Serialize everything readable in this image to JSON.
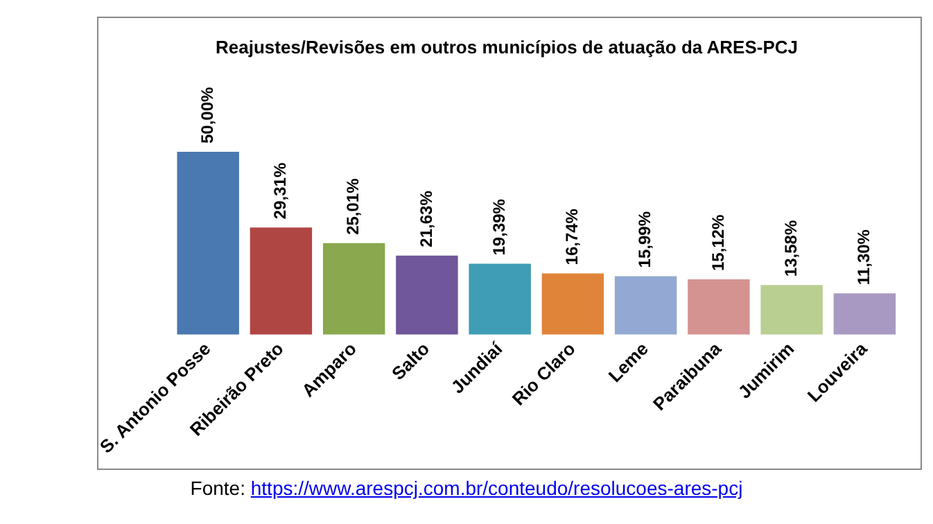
{
  "chart_data": {
    "type": "bar",
    "title": "Reajustes/Revisões em outros municípios de atuação da ARES-PCJ",
    "categories": [
      "S. Antonio Posse",
      "Ribeirão Preto",
      "Amparo",
      "Salto",
      "Jundiaí",
      "Rio Claro",
      "Leme",
      "Paraibuna",
      "Jumirim",
      "Louveira"
    ],
    "values": [
      50.0,
      29.31,
      25.01,
      21.63,
      19.39,
      16.74,
      15.99,
      15.12,
      13.58,
      11.3
    ],
    "value_labels": [
      "50,00%",
      "29,31%",
      "25,01%",
      "21,63%",
      "19,39%",
      "16,74%",
      "15,99%",
      "15,12%",
      "13,58%",
      "11,30%"
    ],
    "colors": [
      "#4a78b0",
      "#b04644",
      "#8aa84e",
      "#70569a",
      "#3f9db5",
      "#e0843a",
      "#93a9d3",
      "#d49391",
      "#b9cf91",
      "#a899c2"
    ],
    "annotations": [
      "Fonte: https://www.arespcj.com.br/conteudo/resolucoes-ares-pcj"
    ],
    "grid": false,
    "legend": false
  }
}
